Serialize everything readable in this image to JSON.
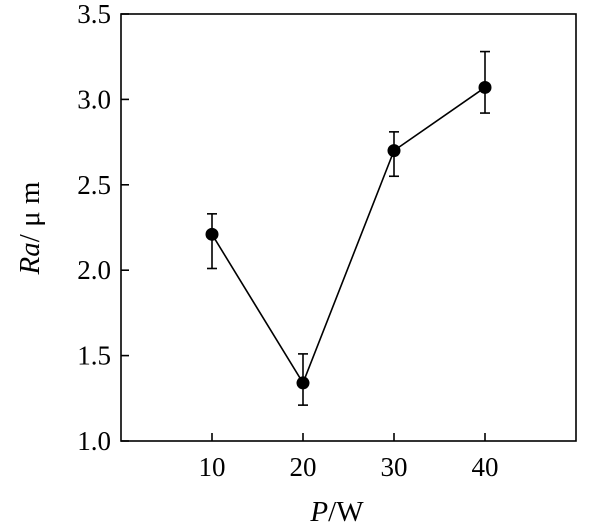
{
  "chart_data": {
    "type": "line",
    "title": "",
    "xlabel_var": "P",
    "xlabel_unit": "/W",
    "ylabel_var": "Ra",
    "ylabel_unit": "/ μ m",
    "xlim": [
      0,
      50
    ],
    "ylim": [
      1.0,
      3.5
    ],
    "x_ticks": [
      10,
      20,
      30,
      40
    ],
    "x_tick_labels": [
      "10",
      "20",
      "30",
      "40"
    ],
    "y_ticks": [
      1.0,
      1.5,
      2.0,
      2.5,
      3.0,
      3.5
    ],
    "y_tick_labels": [
      "1.0",
      "1.5",
      "2.0",
      "2.5",
      "3.0",
      "3.5"
    ],
    "grid": false,
    "series": [
      {
        "x": [
          10,
          20,
          30,
          40
        ],
        "y": [
          2.21,
          1.34,
          2.7,
          3.07
        ],
        "y_err_upper": [
          2.33,
          1.51,
          2.81,
          3.28
        ],
        "y_err_lower": [
          2.01,
          1.21,
          2.55,
          2.92
        ],
        "marker": "filled-circle",
        "color": "#000000"
      }
    ]
  }
}
